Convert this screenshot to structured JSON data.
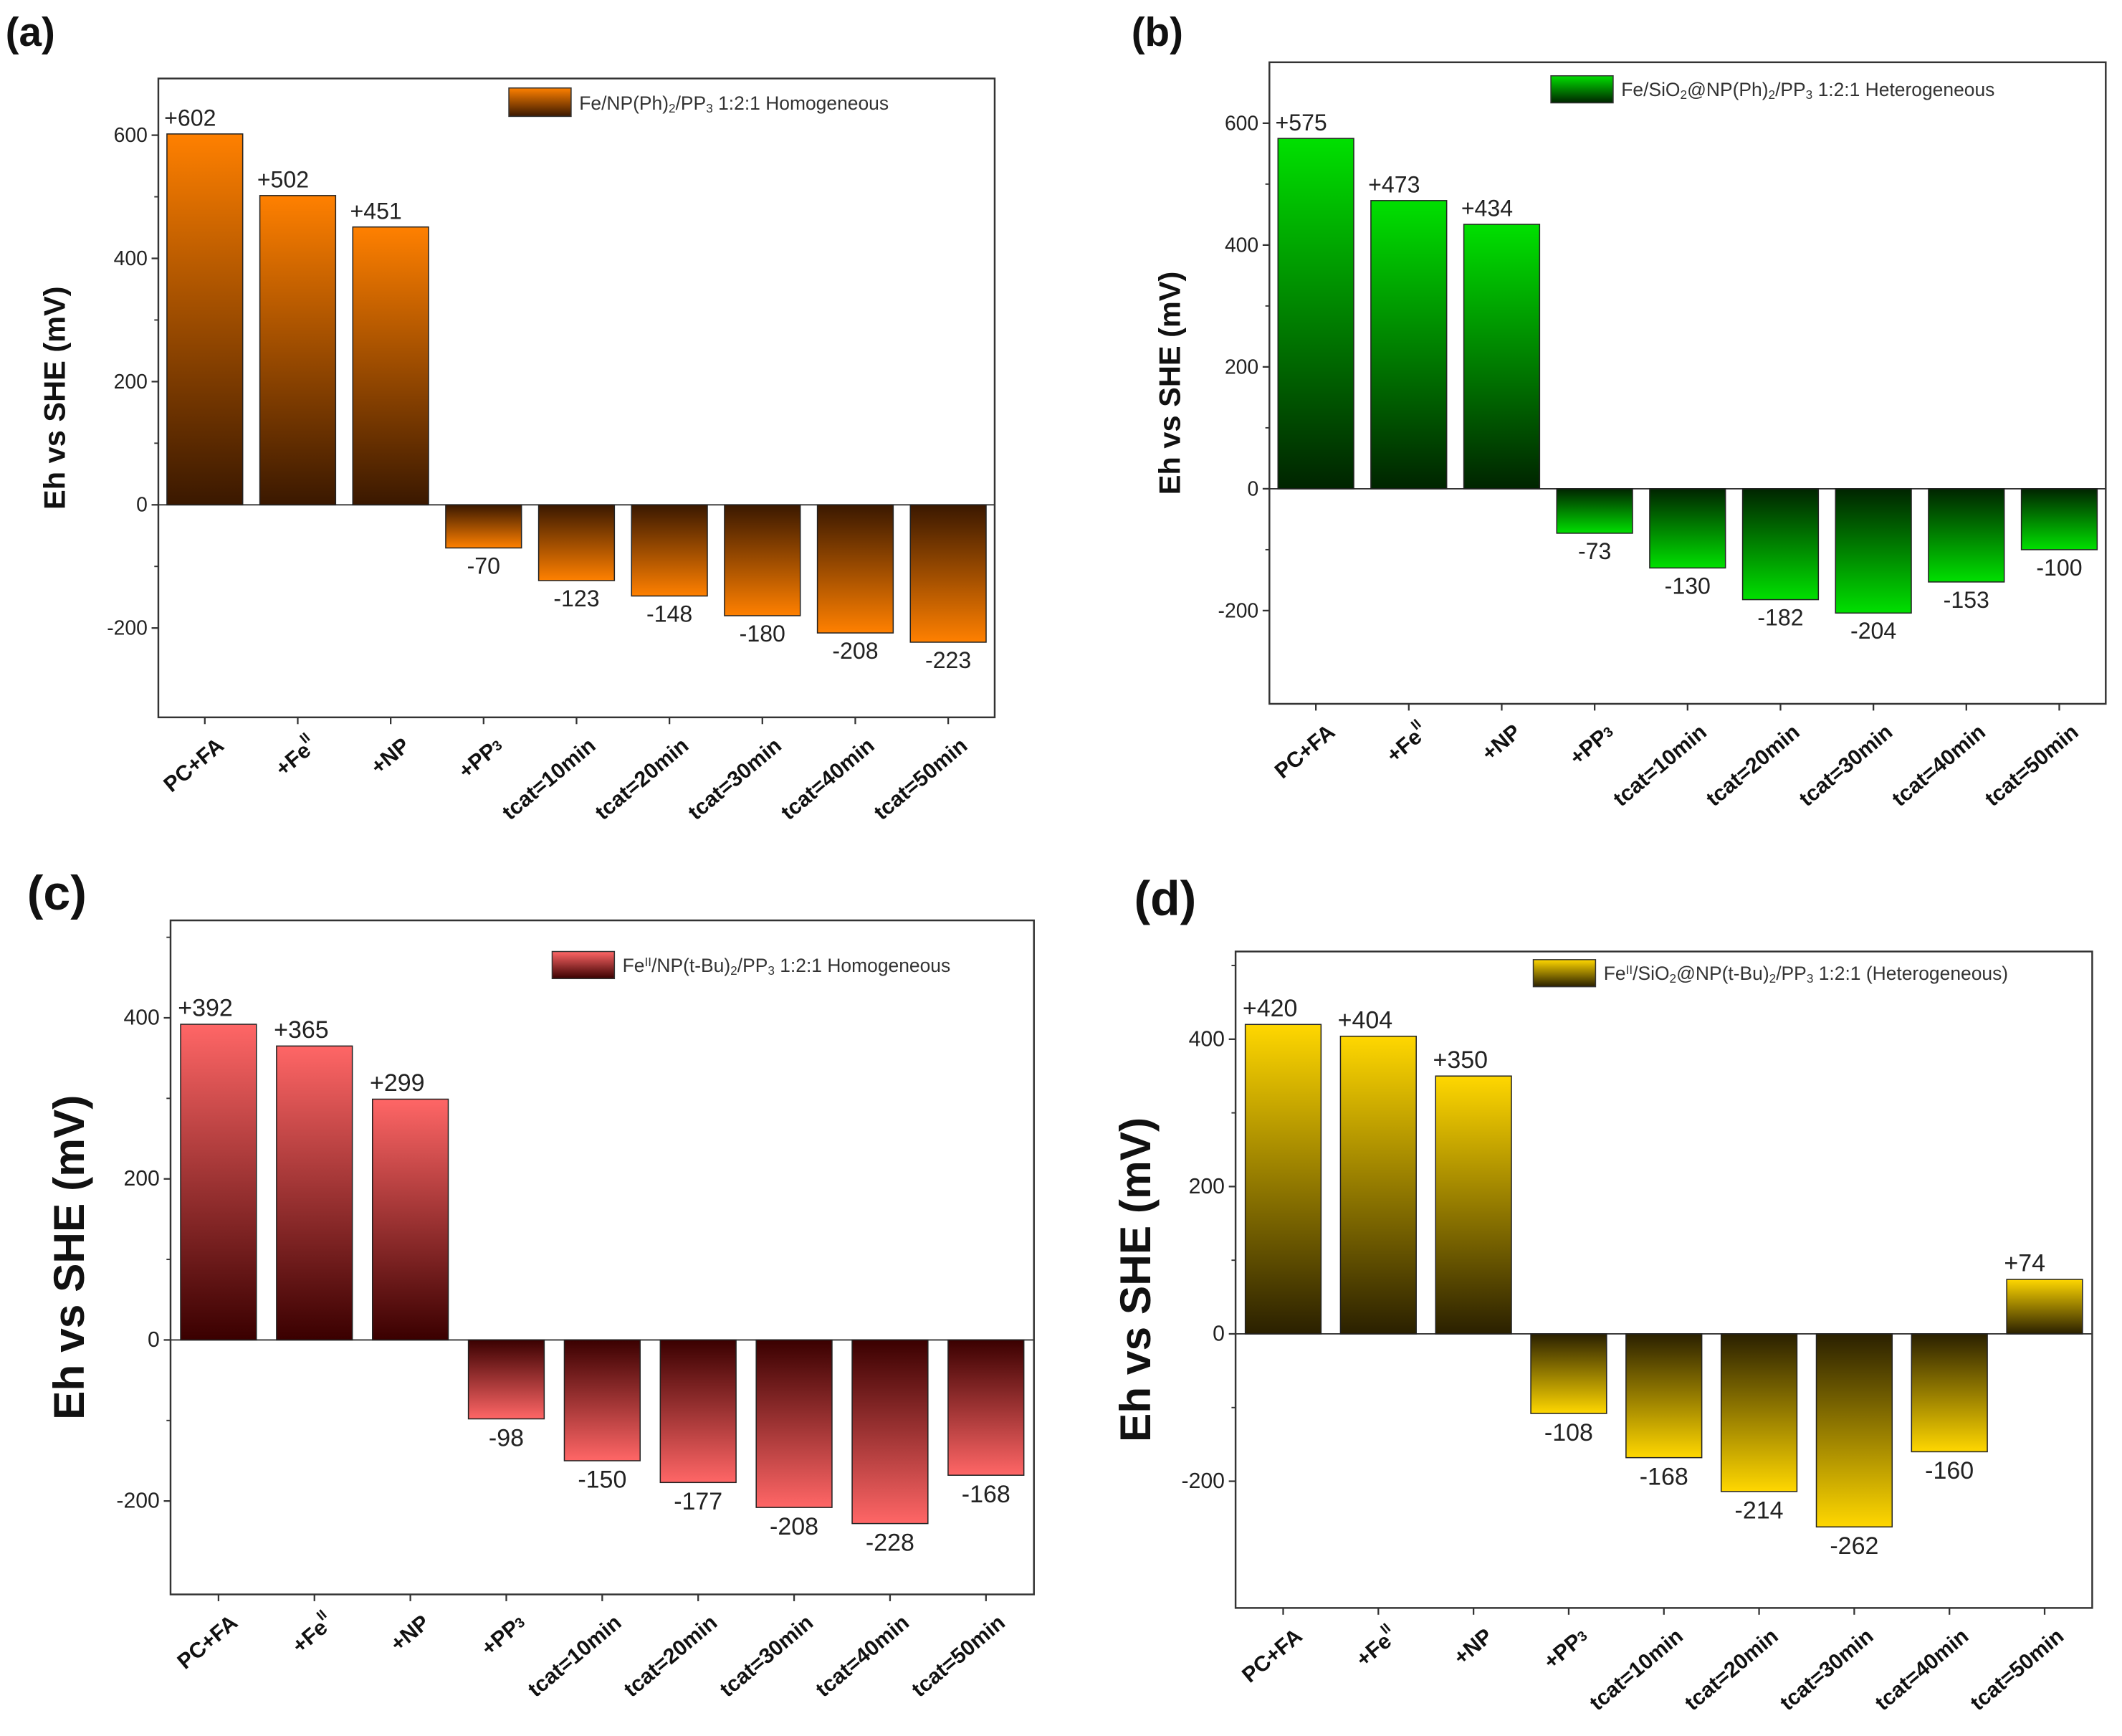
{
  "chart_data": [
    {
      "type": "bar",
      "panel_label": "(a)",
      "legend": "Fe/NP(Ph)_2/PP_3 1:2:1 Homogeneous",
      "ylabel": "Eh vs SHE (mV)",
      "xlabel": "",
      "categories": [
        "PC+FA",
        "+Fe^II",
        "+NP",
        "+PP_3",
        "tcat=10min",
        "tcat=20min",
        "tcat=30min",
        "tcat=40min",
        "tcat=50min"
      ],
      "values": [
        602,
        502,
        451,
        -70,
        -123,
        -148,
        -180,
        -208,
        -223
      ],
      "data_labels": [
        "+602",
        "+502",
        "+451",
        "-70",
        "-123",
        "-148",
        "-180",
        "-208",
        "-223"
      ],
      "yticks": [
        -200,
        0,
        200,
        400,
        600
      ],
      "ylim": [
        -345,
        692
      ],
      "colors": {
        "bright": "#ff8000",
        "dark": "#3a1800"
      }
    },
    {
      "type": "bar",
      "panel_label": "(b)",
      "legend": "Fe/SiO_2@NP(Ph)_2/PP_3 1:2:1 Heterogeneous",
      "ylabel": "Eh vs SHE (mV)",
      "xlabel": "",
      "categories": [
        "PC+FA",
        "+Fe^II",
        "+NP",
        "+PP_3",
        "tcat=10min",
        "tcat=20min",
        "tcat=30min",
        "tcat=40min",
        "tcat=50min"
      ],
      "values": [
        575,
        473,
        434,
        -73,
        -130,
        -182,
        -204,
        -153,
        -100
      ],
      "data_labels": [
        "+575",
        "+473",
        "+434",
        "-73",
        "-130",
        "-182",
        "-204",
        "-153",
        "-100"
      ],
      "yticks": [
        -200,
        0,
        200,
        400,
        600
      ],
      "ylim": [
        -353,
        700
      ],
      "colors": {
        "bright": "#00e000",
        "dark": "#002400"
      }
    },
    {
      "type": "bar",
      "panel_label": "(c)",
      "legend": "Fe^II/NP(t-Bu)_2/PP_3 1:2:1 Homogeneous",
      "ylabel": "Eh vs SHE (mV)",
      "xlabel": "",
      "categories": [
        "PC+FA",
        "+Fe^II",
        "+NP",
        "+PP_3",
        "tcat=10min",
        "tcat=20min",
        "tcat=30min",
        "tcat=40min",
        "tcat=50min"
      ],
      "values": [
        392,
        365,
        299,
        -98,
        -150,
        -177,
        -208,
        -228,
        -168
      ],
      "data_labels": [
        "+392",
        "+365",
        "+299",
        "-98",
        "-150",
        "-177",
        "-208",
        "-228",
        "-168"
      ],
      "yticks": [
        -200,
        0,
        200,
        400
      ],
      "ylim": [
        -316,
        521
      ],
      "colors": {
        "bright": "#ff6666",
        "dark": "#3a0000"
      }
    },
    {
      "type": "bar",
      "panel_label": "(d)",
      "legend": "Fe^II/SiO_2@NP(t-Bu)_2/PP_3 1:2:1 (Heterogeneous)",
      "ylabel": "Eh vs SHE (mV)",
      "xlabel": "",
      "categories": [
        "PC+FA",
        "+Fe^II",
        "+NP",
        "+PP_3",
        "tcat=10min",
        "tcat=20min",
        "tcat=30min",
        "tcat=40min",
        "tcat=50min"
      ],
      "values": [
        420,
        404,
        350,
        -108,
        -168,
        -214,
        -262,
        -160,
        74
      ],
      "data_labels": [
        "+420",
        "+404",
        "+350",
        "-108",
        "-168",
        "-214",
        "-262",
        "-160",
        "+74"
      ],
      "yticks": [
        -200,
        0,
        200,
        400
      ],
      "ylim": [
        -372,
        519
      ],
      "colors": {
        "bright": "#ffd700",
        "dark": "#2a2000"
      }
    }
  ]
}
